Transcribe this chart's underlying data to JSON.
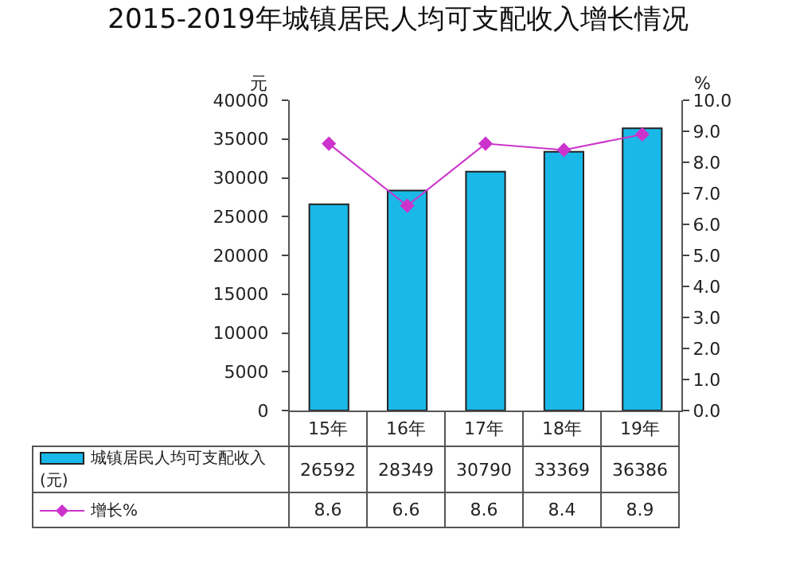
{
  "chart_data": {
    "type": "bar",
    "title": "2015-2019年城镇居民人均可支配收入增长情况",
    "ylabel": "元",
    "y2label": "%",
    "categories": [
      "15年",
      "16年",
      "17年",
      "18年",
      "19年"
    ],
    "series": [
      {
        "name": "城镇居民人均可支配收入(元)",
        "color": "#1ab8e8",
        "values": [
          26592,
          28349,
          30790,
          33369,
          36386
        ]
      },
      {
        "name": "增长%",
        "type": "line",
        "axis": "y2",
        "color": "#cc33cc",
        "values": [
          8.6,
          6.6,
          8.6,
          8.4,
          8.9
        ]
      }
    ],
    "ylim": [
      0,
      40000
    ],
    "yticks": [
      0,
      5000,
      10000,
      15000,
      20000,
      25000,
      30000,
      35000,
      40000
    ],
    "y2lim": [
      0,
      10
    ],
    "y2ticks": [
      {
        "value": 0,
        "label": "0.0"
      },
      {
        "value": 1,
        "label": "1.0"
      },
      {
        "value": 2,
        "label": "2.0"
      },
      {
        "value": 3,
        "label": "3.0"
      },
      {
        "value": 4,
        "label": "4.0"
      },
      {
        "value": 5,
        "label": "5.0"
      },
      {
        "value": 6,
        "label": "6.0"
      },
      {
        "value": 7,
        "label": "7.0"
      },
      {
        "value": 8,
        "label": "8.0"
      },
      {
        "value": 9,
        "label": "9.0"
      },
      {
        "value": 10,
        "label": "10.0"
      }
    ],
    "grid": false,
    "legend": "bottom",
    "marker": "diamond",
    "line_style": "solid",
    "data_labels": true
  }
}
